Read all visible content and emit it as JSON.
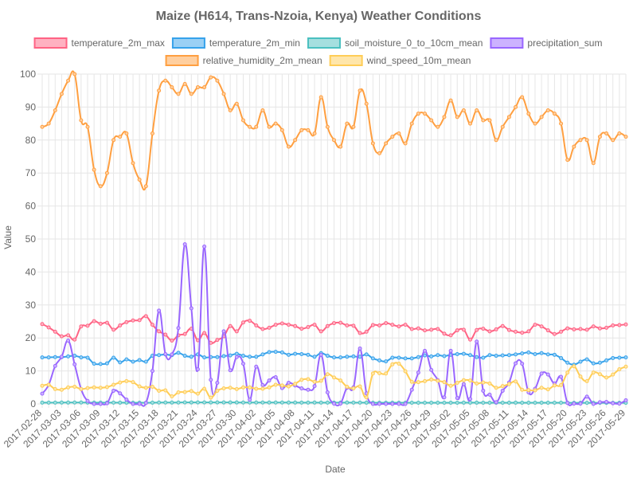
{
  "chart_data": {
    "type": "line",
    "title": "Maize (H614, Trans-Nzoia, Kenya) Weather Conditions",
    "xlabel": "Date",
    "ylabel": "Value",
    "ylim": [
      0,
      100
    ],
    "yticks": [
      0,
      10,
      20,
      30,
      40,
      50,
      60,
      70,
      80,
      90,
      100
    ],
    "grid": true,
    "legend_position": "top",
    "x": [
      "2017-02-28",
      "2017-03-01",
      "2017-03-02",
      "2017-03-03",
      "2017-03-04",
      "2017-03-05",
      "2017-03-06",
      "2017-03-07",
      "2017-03-08",
      "2017-03-09",
      "2017-03-10",
      "2017-03-11",
      "2017-03-12",
      "2017-03-13",
      "2017-03-14",
      "2017-03-15",
      "2017-03-16",
      "2017-03-17",
      "2017-03-18",
      "2017-03-19",
      "2017-03-20",
      "2017-03-21",
      "2017-03-22",
      "2017-03-23",
      "2017-03-24",
      "2017-03-25",
      "2017-03-26",
      "2017-03-27",
      "2017-03-28",
      "2017-03-29",
      "2017-03-30",
      "2017-03-31",
      "2017-04-01",
      "2017-04-02",
      "2017-04-03",
      "2017-04-04",
      "2017-04-05",
      "2017-04-06",
      "2017-04-07",
      "2017-04-08",
      "2017-04-09",
      "2017-04-10",
      "2017-04-11",
      "2017-04-12",
      "2017-04-13",
      "2017-04-14",
      "2017-04-15",
      "2017-04-16",
      "2017-04-17",
      "2017-04-18",
      "2017-04-19",
      "2017-04-20",
      "2017-04-21",
      "2017-04-22",
      "2017-04-23",
      "2017-04-24",
      "2017-04-25",
      "2017-04-26",
      "2017-04-27",
      "2017-04-28",
      "2017-04-29",
      "2017-04-30",
      "2017-05-01",
      "2017-05-02",
      "2017-05-03",
      "2017-05-04",
      "2017-05-05",
      "2017-05-06",
      "2017-05-07",
      "2017-05-08",
      "2017-05-09",
      "2017-05-10",
      "2017-05-11",
      "2017-05-12",
      "2017-05-13",
      "2017-05-14",
      "2017-05-15",
      "2017-05-16",
      "2017-05-17",
      "2017-05-18",
      "2017-05-19",
      "2017-05-20",
      "2017-05-21",
      "2017-05-22",
      "2017-05-23",
      "2017-05-24",
      "2017-05-25",
      "2017-05-26",
      "2017-05-27",
      "2017-05-28",
      "2017-05-29"
    ],
    "xtick_labels": [
      "2017-02-28",
      "2017-03-03",
      "2017-03-06",
      "2017-03-09",
      "2017-03-12",
      "2017-03-15",
      "2017-03-18",
      "2017-03-21",
      "2017-03-24",
      "2017-03-27",
      "2017-03-30",
      "2017-04-02",
      "2017-04-05",
      "2017-04-08",
      "2017-04-11",
      "2017-04-14",
      "2017-04-17",
      "2017-04-20",
      "2017-04-23",
      "2017-04-26",
      "2017-04-29",
      "2017-05-02",
      "2017-05-05",
      "2017-05-08",
      "2017-05-11",
      "2017-05-14",
      "2017-05-17",
      "2017-05-20",
      "2017-05-23",
      "2017-05-26",
      "2017-05-29"
    ],
    "series": [
      {
        "name": "temperature_2m_max",
        "color": "#ff6384",
        "fill": "#ffb1c1",
        "values": [
          24.2,
          23.2,
          21.9,
          20.5,
          20.8,
          19.5,
          23.5,
          23.7,
          25.1,
          24.3,
          24.6,
          22.5,
          23.8,
          24.8,
          25.3,
          25.4,
          26.6,
          24.0,
          22.0,
          21.0,
          19.2,
          20.8,
          21.2,
          22.8,
          19.3,
          21.5,
          18.5,
          19.4,
          20.5,
          23.6,
          22.0,
          24.7,
          25.2,
          23.8,
          22.7,
          23.1,
          24.0,
          24.4,
          24.0,
          23.6,
          22.8,
          23.3,
          24.0,
          22.0,
          23.6,
          24.5,
          24.6,
          23.8,
          23.7,
          21.5,
          21.9,
          23.9,
          23.8,
          24.5,
          24.0,
          23.5,
          24.0,
          22.7,
          22.9,
          22.3,
          22.5,
          22.7,
          21.3,
          20.8,
          22.3,
          22.5,
          19.5,
          22.4,
          22.8,
          22.0,
          22.6,
          23.6,
          22.4,
          21.9,
          21.6,
          22.0,
          24.0,
          23.5,
          22.3,
          21.2,
          21.9,
          22.9,
          22.6,
          22.7,
          22.5,
          23.5,
          22.9,
          23.1,
          23.8,
          23.9,
          24.1
        ]
      },
      {
        "name": "temperature_2m_min",
        "color": "#36a2eb",
        "fill": "#9ad0f5",
        "values": [
          14.1,
          14.1,
          14.2,
          14.2,
          14.4,
          14.6,
          14.1,
          14.0,
          12.2,
          12.1,
          12.3,
          14.0,
          12.6,
          13.5,
          12.8,
          13.3,
          12.8,
          14.6,
          14.8,
          15.0,
          14.8,
          15.5,
          14.6,
          14.3,
          15.0,
          14.1,
          14.2,
          14.2,
          14.5,
          14.7,
          15.2,
          14.6,
          14.3,
          14.3,
          15.0,
          15.7,
          15.8,
          15.6,
          14.9,
          15.2,
          15.1,
          14.9,
          14.3,
          15.4,
          14.6,
          14.1,
          14.1,
          14.3,
          14.4,
          14.3,
          15.0,
          13.8,
          13.2,
          12.9,
          14.0,
          14.0,
          13.8,
          13.8,
          14.2,
          14.7,
          14.4,
          14.8,
          14.5,
          14.9,
          15.1,
          15.2,
          14.8,
          14.2,
          14.0,
          14.8,
          14.6,
          14.7,
          14.8,
          15.0,
          15.3,
          15.6,
          15.1,
          15.4,
          15.0,
          14.9,
          13.9,
          12.5,
          11.9,
          12.8,
          13.5,
          12.3,
          12.5,
          13.2,
          13.9,
          14.0,
          14.1
        ]
      },
      {
        "name": "soil_moisture_0_to_10cm_mean",
        "color": "#4bc0c0",
        "fill": "#a5dfdf",
        "values": [
          0.4,
          0.4,
          0.4,
          0.41,
          0.41,
          0.42,
          0.42,
          0.41,
          0.4,
          0.4,
          0.39,
          0.39,
          0.38,
          0.38,
          0.37,
          0.37,
          0.36,
          0.38,
          0.42,
          0.42,
          0.41,
          0.43,
          0.45,
          0.44,
          0.46,
          0.45,
          0.44,
          0.45,
          0.44,
          0.44,
          0.44,
          0.43,
          0.43,
          0.42,
          0.43,
          0.43,
          0.42,
          0.42,
          0.41,
          0.41,
          0.4,
          0.4,
          0.41,
          0.4,
          0.4,
          0.4,
          0.4,
          0.41,
          0.4,
          0.39,
          0.38,
          0.37,
          0.37,
          0.36,
          0.35,
          0.35,
          0.35,
          0.36,
          0.36,
          0.36,
          0.36,
          0.36,
          0.37,
          0.37,
          0.37,
          0.38,
          0.38,
          0.38,
          0.37,
          0.37,
          0.37,
          0.37,
          0.37,
          0.38,
          0.37,
          0.37,
          0.37,
          0.37,
          0.37,
          0.37,
          0.36,
          0.35,
          0.34,
          0.34,
          0.34,
          0.33,
          0.33,
          0.33,
          0.33,
          0.33,
          0.33
        ]
      },
      {
        "name": "precipitation_sum",
        "color": "#9966ff",
        "fill": "#ccb2ff",
        "values": [
          3.1,
          5.8,
          11.5,
          14.3,
          19.2,
          12.0,
          4.5,
          0.9,
          0.0,
          0.0,
          0.2,
          4.0,
          3.2,
          1.3,
          0.0,
          0.0,
          0.3,
          10.0,
          28.3,
          15.1,
          15.0,
          23.0,
          48.4,
          29.0,
          10.5,
          47.7,
          7.3,
          6.4,
          22.0,
          10.2,
          14.2,
          12.2,
          1.3,
          11.3,
          5.7,
          7.1,
          8.1,
          4.8,
          6.4,
          5.6,
          4.7,
          4.3,
          5.4,
          14.9,
          3.5,
          0.1,
          0.1,
          4.9,
          5.0,
          16.8,
          3.2,
          0.0,
          0.0,
          0.0,
          0.0,
          0.0,
          0.0,
          4.3,
          9.5,
          16.1,
          10.3,
          7.2,
          2.0,
          16.1,
          1.8,
          6.0,
          1.5,
          18.9,
          4.0,
          2.8,
          0.5,
          4.0,
          6.5,
          12.3,
          12.2,
          3.5,
          4.6,
          9.2,
          8.9,
          6.2,
          8.2,
          0.3,
          0.1,
          0.1,
          2.2,
          0.0,
          0.5,
          0.6,
          0.2,
          0.1,
          1.1
        ]
      },
      {
        "name": "relative_humidity_2m_mean",
        "color": "#ff9f40",
        "fill": "#ffcf9f",
        "values": [
          84,
          85,
          89,
          94,
          98,
          100,
          86,
          84,
          71,
          66,
          70,
          80,
          81,
          82,
          73,
          68,
          66,
          82,
          95,
          98,
          96,
          94,
          97,
          94,
          96,
          96,
          99,
          98,
          94,
          89,
          91,
          86,
          84,
          84,
          89,
          84,
          85,
          83,
          78,
          80,
          83,
          83,
          82,
          93,
          84,
          80,
          78,
          85,
          84,
          95,
          91,
          79,
          76,
          79,
          81,
          82,
          79,
          85,
          88,
          88,
          86,
          84,
          87,
          92,
          87,
          89,
          85,
          89,
          86,
          86,
          80,
          84,
          87,
          90,
          93,
          88,
          85,
          87,
          89,
          88,
          85,
          74,
          78,
          80,
          80,
          73,
          81,
          82,
          80,
          82,
          81
        ]
      },
      {
        "name": "wind_speed_10m_mean",
        "color": "#ffcd56",
        "fill": "#ffe6aa",
        "values": [
          5.5,
          5.8,
          4.5,
          4.3,
          5.0,
          5.2,
          4.5,
          4.8,
          5.0,
          4.9,
          5.1,
          5.8,
          6.5,
          6.9,
          6.6,
          5.3,
          4.9,
          5.2,
          4.0,
          4.1,
          2.3,
          3.5,
          3.6,
          3.9,
          3.1,
          4.6,
          1.9,
          4.0,
          4.7,
          4.9,
          4.5,
          5.0,
          5.0,
          4.6,
          4.6,
          5.0,
          5.8,
          5.6,
          5.3,
          6.1,
          7.3,
          7.5,
          6.7,
          7.0,
          9.0,
          8.0,
          7.1,
          5.2,
          4.7,
          5.3,
          2.0,
          9.2,
          9.3,
          9.2,
          12.0,
          12.2,
          9.9,
          6.7,
          6.6,
          6.9,
          7.4,
          7.0,
          6.6,
          5.5,
          6.4,
          7.2,
          7.1,
          6.2,
          6.5,
          6.2,
          4.9,
          5.4,
          6.0,
          6.8,
          4.3,
          4.2,
          4.1,
          4.9,
          4.4,
          5.6,
          5.7,
          9.5,
          11.4,
          8.3,
          6.9,
          9.5,
          9.0,
          8.0,
          8.9,
          10.5,
          11.3
        ]
      }
    ]
  }
}
